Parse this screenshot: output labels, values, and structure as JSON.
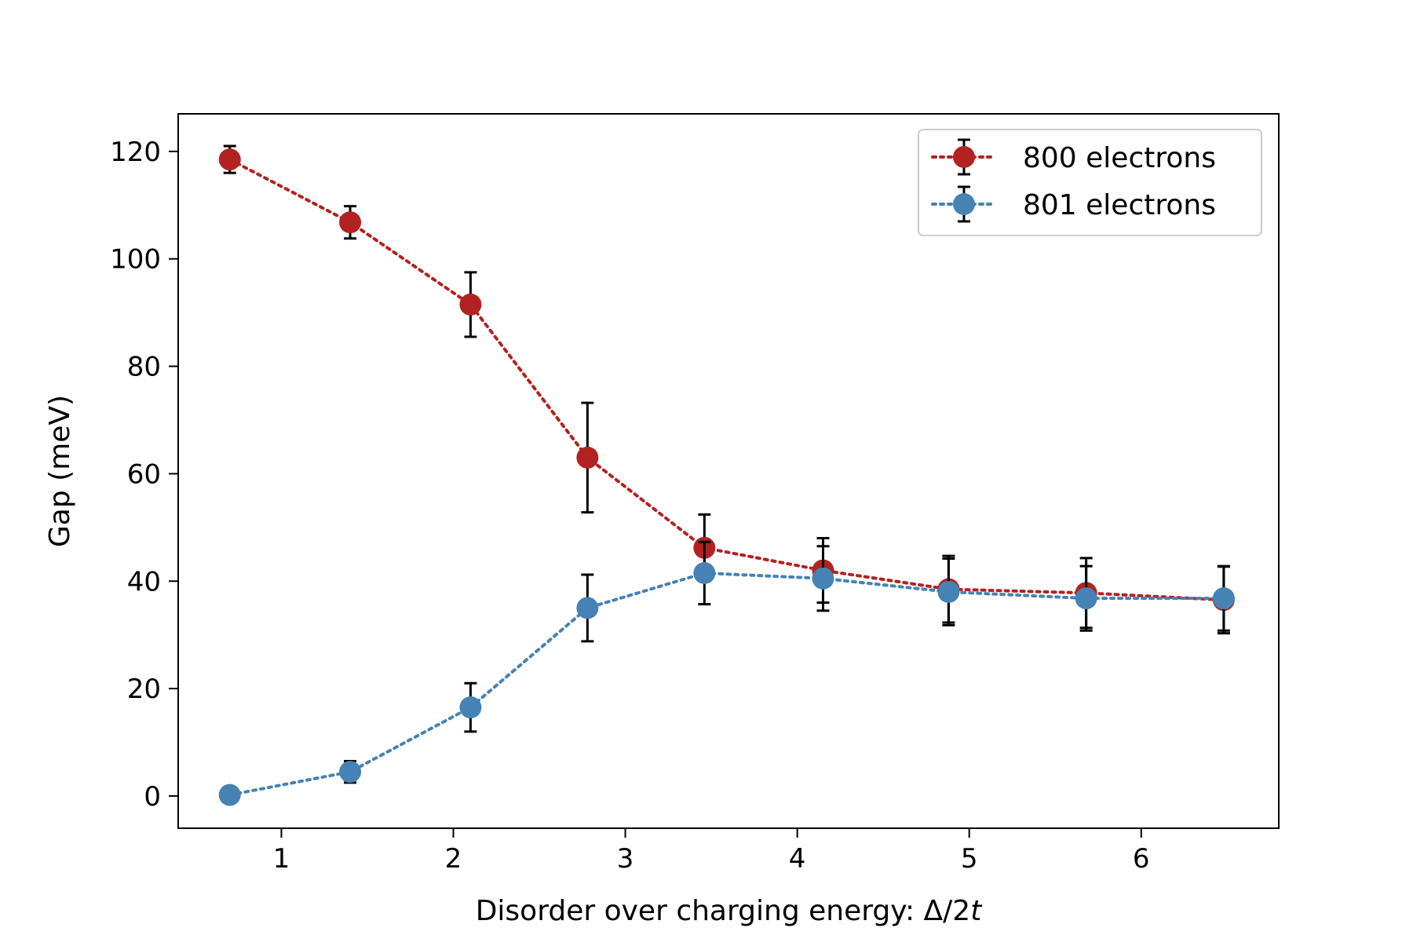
{
  "chart_data": {
    "type": "line",
    "title": "",
    "xlabel": "Disorder over charging energy: Δ/2",
    "xlabel_italic": "t",
    "ylabel": "Gap (meV)",
    "xlim": [
      0.4,
      6.8
    ],
    "ylim": [
      -6,
      127
    ],
    "xticks": [
      1,
      2,
      3,
      4,
      5,
      6
    ],
    "yticks": [
      0,
      20,
      40,
      60,
      80,
      100,
      120
    ],
    "grid": false,
    "legend_position": "top-right",
    "x": [
      0.7,
      1.4,
      2.1,
      2.78,
      3.46,
      4.15,
      4.88,
      5.68,
      6.48
    ],
    "series": [
      {
        "name": "800 electrons",
        "color": "#b22222",
        "line_style": "dotted",
        "marker": "circle",
        "values": [
          118.5,
          106.8,
          91.5,
          63.0,
          46.2,
          42.0,
          38.5,
          37.8,
          36.5
        ],
        "errors": [
          2.5,
          3.0,
          6.0,
          10.2,
          6.2,
          6.0,
          6.2,
          6.5,
          6.2
        ]
      },
      {
        "name": "801 electrons",
        "color": "#4682b4",
        "line_style": "dotted",
        "marker": "circle",
        "values": [
          0.2,
          4.5,
          16.5,
          35.0,
          41.5,
          40.5,
          38.0,
          36.8,
          36.8
        ],
        "errors": [
          0.0,
          2.0,
          4.5,
          6.2,
          5.8,
          6.0,
          6.2,
          6.0,
          6.0
        ]
      }
    ]
  }
}
